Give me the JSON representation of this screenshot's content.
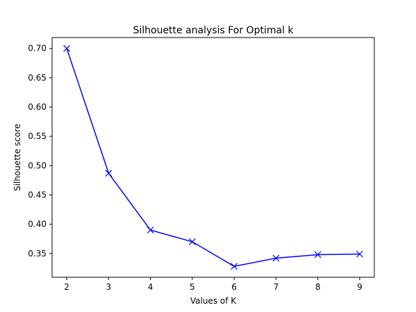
{
  "chart_data": {
    "type": "line",
    "title": "Silhouette analysis For Optimal k",
    "xlabel": "Values of K",
    "ylabel": "Silhouette score",
    "x": [
      2,
      3,
      4,
      5,
      6,
      7,
      8,
      9
    ],
    "series": [
      {
        "values": [
          0.7,
          0.487,
          0.39,
          0.37,
          0.328,
          0.342,
          0.348,
          0.349
        ],
        "color": "#0000ff",
        "marker": "x"
      }
    ],
    "xticks": [
      "2",
      "3",
      "4",
      "5",
      "6",
      "7",
      "8",
      "9"
    ],
    "yticks": [
      "0.35",
      "0.40",
      "0.45",
      "0.50",
      "0.55",
      "0.60",
      "0.65",
      "0.70"
    ],
    "xlim": [
      1.65,
      9.35
    ],
    "ylim": [
      0.3094,
      0.7186
    ],
    "grid": false
  }
}
